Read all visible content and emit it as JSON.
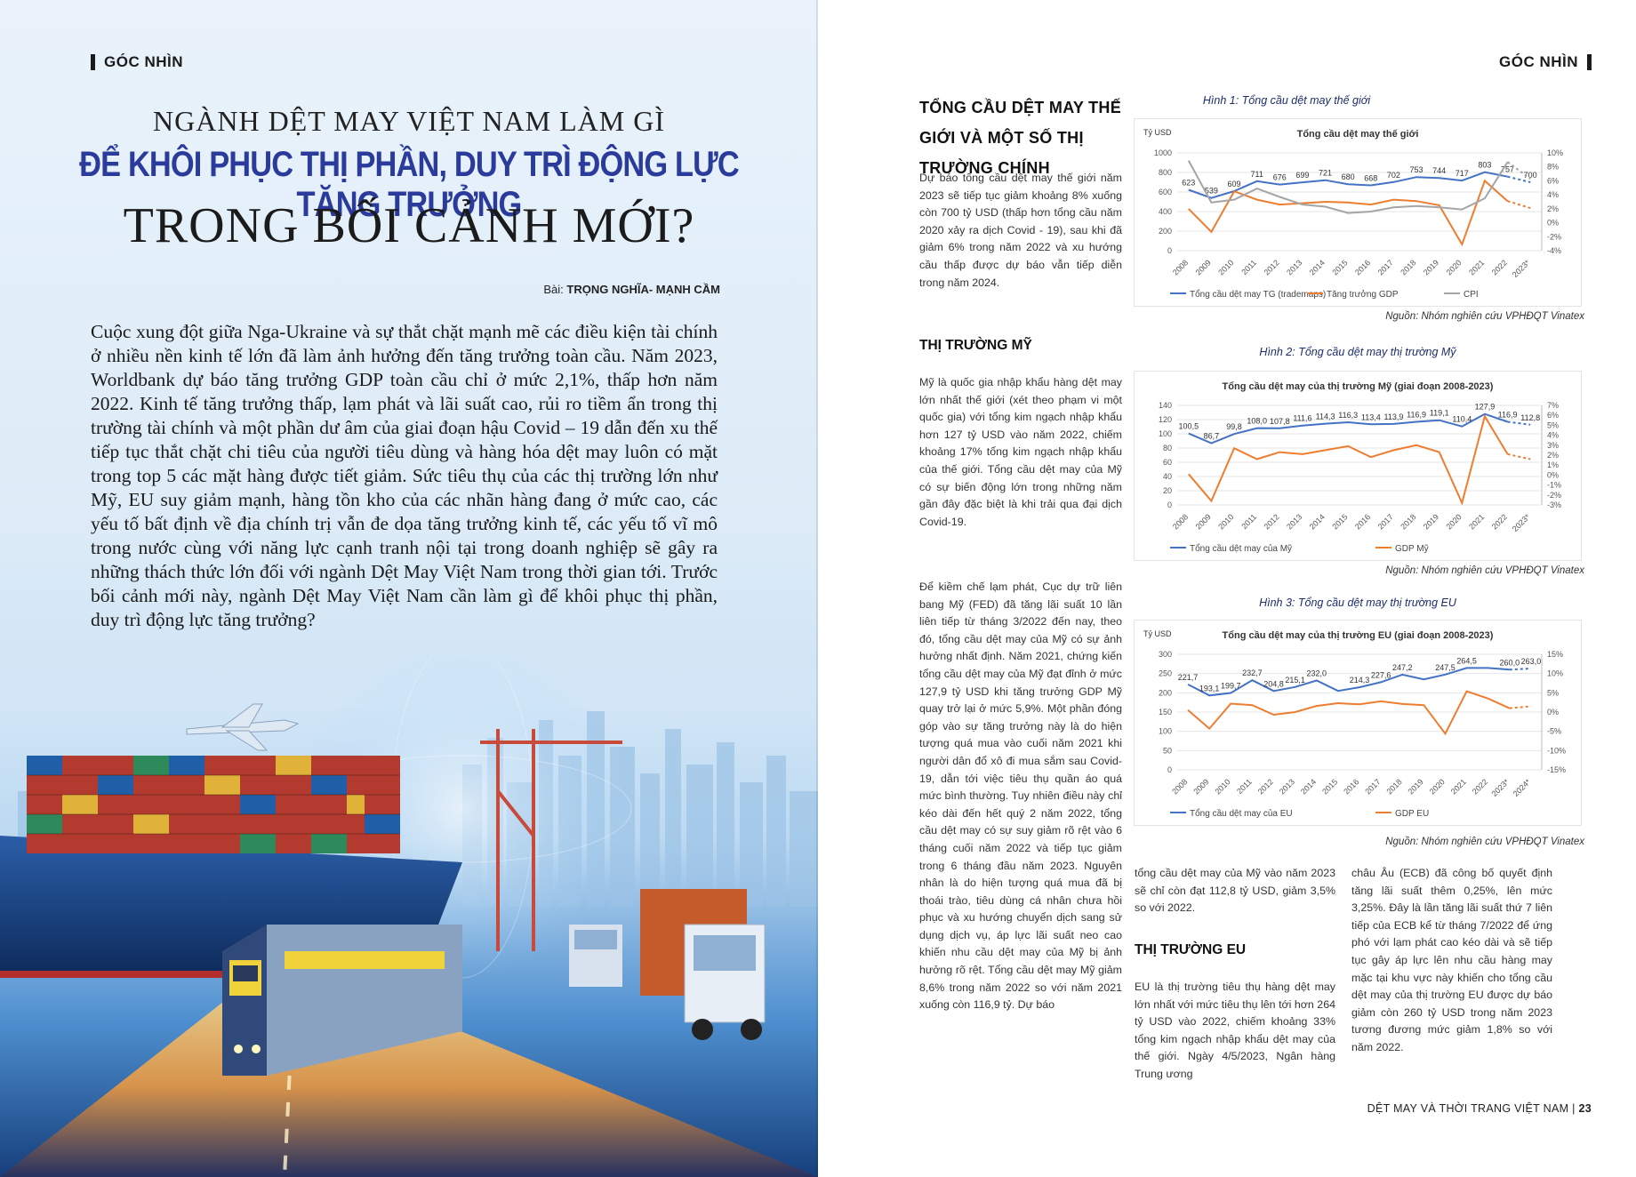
{
  "left_page": {
    "section_tag": "GÓC NHÌN",
    "title_line1": "NGÀNH DỆT MAY VIỆT NAM LÀM GÌ",
    "title_line2": "ĐỂ KHÔI PHỤC THỊ PHẦN, DUY TRÌ ĐỘNG LỰC TĂNG TRƯỞNG",
    "title_line3": "TRONG BỐI CẢNH MỚI?",
    "byline_prefix": "Bài:",
    "byline_authors": "TRỌNG NGHĨA- MẠNH CẦM",
    "lead": "Cuộc xung đột giữa Nga-Ukraine và sự thắt chặt mạnh mẽ các điều kiện tài chính ở nhiều nền kinh tế lớn đã làm ảnh hưởng đến tăng trưởng toàn cầu. Năm 2023, Worldbank dự báo tăng trưởng GDP toàn cầu chỉ ở mức 2,1%, thấp hơn năm 2022. Kinh tế tăng trưởng thấp, lạm phát và lãi suất cao, rủi ro tiềm ẩn trong thị trường tài chính và một phần dư âm của giai đoạn hậu Covid – 19 dẫn đến xu thế tiếp tục thắt chặt chi tiêu của người tiêu dùng và hàng hóa dệt may luôn có mặt trong top 5 các mặt hàng được tiết giảm. Sức tiêu thụ của các thị trường lớn như Mỹ, EU suy giảm mạnh, hàng tồn kho của các nhãn hàng đang ở mức cao, các yếu tố bất định về địa chính trị vẫn đe dọa tăng trưởng kinh tế, các yếu tố vĩ mô trong nước cùng với năng lực cạnh tranh nội tại trong doanh nghiệp sẽ gây ra những thách thức lớn đối với ngành Dệt May Việt Nam trong thời gian tới. Trước bối cảnh mới này, ngành Dệt May Việt Nam cần làm gì để khôi phục thị phần, duy trì động lực tăng trưởng?"
  },
  "right_page": {
    "section_tag": "GÓC NHÌN",
    "heading_world": "TỔNG CẦU DỆT MAY THẾ GIỚI VÀ MỘT SỐ THỊ TRƯỜNG CHÍNH",
    "para_world": "Dự báo tổng cầu dệt may thế giới năm 2023 sẽ tiếp tục giảm khoảng 8% xuống còn 700 tỷ USD (thấp hơn tổng cầu năm 2020 xảy ra dịch Covid - 19), sau khi đã giảm 6% trong năm 2022 và xu hướng cầu thấp được dự báo vẫn tiếp diễn trong năm 2024.",
    "heading_us": "THỊ TRƯỜNG MỸ",
    "para_us1": "Mỹ là quốc gia nhập khẩu hàng dệt may lớn nhất thế giới (xét theo phạm vi một quốc gia) với tổng kim ngạch nhập khẩu hơn 127 tỷ USD vào năm 2022, chiếm khoảng 17% tổng kim ngạch nhập khẩu của thế giới. Tổng cầu dệt may của Mỹ có sự biến động lớn trong những năm gần đây đặc biệt là khi trải qua đại dịch Covid-19.",
    "para_us2": "Để kiềm chế lạm phát, Cục dự trữ liên bang Mỹ (FED) đã tăng lãi suất 10 lần liên tiếp từ tháng 3/2022 đến nay, theo đó, tổng cầu dệt may của Mỹ có sự ảnh hưởng nhất định. Năm 2021, chứng kiến tổng cầu dệt may của Mỹ đạt đỉnh ở mức 127,9 tỷ USD khi tăng trưởng GDP Mỹ quay trở lại ở mức 5,9%. Một phần đóng góp vào sự tăng trưởng này là do hiện tượng quá mua vào cuối năm 2021 khi người dân đổ xô đi mua sắm sau Covid-19, dẫn tới việc tiêu thụ quần áo quá mức bình thường. Tuy nhiên điều này chỉ kéo dài đến hết quý 2 năm 2022, tổng cầu dệt may có sự suy giảm rõ rệt vào 6 tháng cuối năm 2022 và tiếp tục giảm trong 6 tháng đầu năm 2023. Nguyên nhân là do hiện tượng quá mua đã bị thoái trào, tiêu dùng cá nhân chưa hồi phục và xu hướng chuyển dịch sang sử dụng dịch vụ, áp lực lãi suất neo cao khiến nhu cầu dệt may của Mỹ bị ảnh hưởng rõ rệt. Tổng cầu dệt may Mỹ giảm 8,6% trong năm 2022 so với năm 2021 xuống còn 116,9 tỷ. Dự báo",
    "para_us3": "tổng cầu dệt may của Mỹ vào năm 2023 sẽ chỉ còn đạt 112,8 tỷ USD, giảm 3,5% so với 2022.",
    "heading_eu": "THỊ TRƯỜNG EU",
    "para_eu1": "EU là thị trường tiêu thụ hàng dệt may lớn nhất với mức tiêu thụ lên tới hơn 264 tỷ USD vào 2022, chiếm khoảng 33% tổng kim ngạch nhập khẩu dệt may của thế giới. Ngày 4/5/2023, Ngân hàng Trung ương",
    "para_eu2": "châu Âu (ECB) đã công bố quyết định tăng lãi suất thêm 0,25%, lên mức 3,25%. Đây là lần tăng lãi suất thứ 7 liên tiếp của ECB kể từ tháng 7/2022 để ứng phó với lạm phát cao kéo dài và sẽ tiếp tục gây áp lực lên nhu cầu hàng may mặc tại khu vực này khiến cho tổng cầu dệt may của thị trường EU được dự báo giảm còn 260 tỷ USD trong năm 2023 tương đương mức giảm 1,8% so với năm 2022.",
    "footer_title": "DỆT MAY VÀ THỜI TRANG VIỆT NAM",
    "footer_sep": "|",
    "page_number": "23"
  },
  "figures": [
    {
      "caption": "Hình 1: Tổng cầu dệt may thế giới",
      "source": "Nguồn: Nhóm nghiên cứu VPHĐQT Vinatex"
    },
    {
      "caption": "Hình 2: Tổng cầu dệt may thị trường Mỹ",
      "source": "Nguồn: Nhóm nghiên cứu VPHĐQT Vinatex"
    },
    {
      "caption": "Hình 3: Tổng cầu dệt may thị trường EU",
      "source": "Nguồn: Nhóm nghiên cứu VPHĐQT Vinatex"
    }
  ],
  "colors": {
    "blue_series": "#4472c4",
    "orange_series": "#ed7d31",
    "gray_series": "#a5a5a5",
    "title_blue": "#2b3b9c"
  },
  "chart_data": [
    {
      "type": "line",
      "title": "Tổng cầu dệt may thế giới",
      "ylabel": "Tỷ USD",
      "x": [
        "2008",
        "2009",
        "2010",
        "2011",
        "2012",
        "2013",
        "2014",
        "2015",
        "2016",
        "2017",
        "2018",
        "2019",
        "2020",
        "2021",
        "2022",
        "2023*"
      ],
      "ylim": [
        0,
        1000
      ],
      "y2lim": [
        -4,
        10
      ],
      "yticks": [
        "1000",
        "800",
        "600",
        "400",
        "200",
        "0"
      ],
      "y2ticks": [
        "10%",
        "8%",
        "6%",
        "4%",
        "2%",
        "0%",
        "-2%",
        "-4%"
      ],
      "series": [
        {
          "name": "Tổng cầu dệt may TG (trademaps)",
          "axis": "left",
          "color": "#4472c4",
          "values": [
            623,
            539,
            609,
            711,
            676,
            699,
            721,
            680,
            668,
            702,
            753,
            744,
            717,
            803,
            757,
            700
          ],
          "labels": [
            "623",
            "539",
            "609",
            "711",
            "676",
            "699",
            "721",
            "680",
            "668",
            "702",
            "753",
            "744",
            "717",
            "803",
            "757",
            "700"
          ]
        },
        {
          "name": "Tăng trưởng GDP",
          "axis": "right",
          "color": "#ed7d31",
          "values": [
            2.0,
            -1.3,
            4.5,
            3.3,
            2.6,
            2.8,
            3.0,
            2.9,
            2.6,
            3.3,
            3.1,
            2.5,
            -3.1,
            6.0,
            3.1,
            2.1
          ]
        },
        {
          "name": "CPI",
          "axis": "right",
          "color": "#a5a5a5",
          "values": [
            8.9,
            2.9,
            3.3,
            4.9,
            3.7,
            2.6,
            2.3,
            1.4,
            1.6,
            2.2,
            2.4,
            2.2,
            1.9,
            3.5,
            8.7,
            6.3
          ]
        }
      ]
    },
    {
      "type": "line",
      "title": "Tổng cầu dệt may của thị trường Mỹ (giai đoạn 2008-2023)",
      "x": [
        "2008",
        "2009",
        "2010",
        "2011",
        "2012",
        "2013",
        "2014",
        "2015",
        "2016",
        "2017",
        "2018",
        "2019",
        "2020",
        "2021",
        "2022",
        "2023*"
      ],
      "ylim": [
        0,
        140
      ],
      "y2lim": [
        -3,
        7
      ],
      "yticks": [
        "140",
        "120",
        "100",
        "80",
        "60",
        "40",
        "20",
        "0"
      ],
      "y2ticks": [
        "7%",
        "6%",
        "5%",
        "4%",
        "3%",
        "2%",
        "1%",
        "0%",
        "-1%",
        "-2%",
        "-3%"
      ],
      "series": [
        {
          "name": "Tổng cầu dệt may của Mỹ",
          "axis": "left",
          "color": "#4472c4",
          "values": [
            100.5,
            86.7,
            99.8,
            108.0,
            107.8,
            111.6,
            114.3,
            116.3,
            113.4,
            113.9,
            116.9,
            119.1,
            110.4,
            127.9,
            116.9,
            112.8
          ],
          "labels": [
            "100,5",
            "86,7",
            "99,8",
            "108,0",
            "107,8",
            "111,6",
            "114,3",
            "116,3",
            "113,4",
            "113,9",
            "116,9",
            "119,1",
            "110,4",
            "127,9",
            "116,9",
            "112,8"
          ]
        },
        {
          "name": "GDP Mỹ",
          "axis": "right",
          "color": "#ed7d31",
          "values": [
            0.1,
            -2.6,
            2.7,
            1.6,
            2.3,
            2.1,
            2.5,
            2.9,
            1.8,
            2.5,
            3.0,
            2.3,
            -2.8,
            5.9,
            2.1,
            1.6
          ]
        }
      ]
    },
    {
      "type": "line",
      "title": "Tổng cầu dệt may của thị trường EU (giai đoạn 2008-2023)",
      "ylabel": "Tỷ USD",
      "x": [
        "2008",
        "2009",
        "2010",
        "2011",
        "2012",
        "2013",
        "2014",
        "2015",
        "2016",
        "2017",
        "2018",
        "2019",
        "2020",
        "2021",
        "2022",
        "2023*",
        "2024*"
      ],
      "ylim": [
        0,
        300
      ],
      "y2lim": [
        -15,
        15
      ],
      "yticks": [
        "300",
        "250",
        "200",
        "150",
        "100",
        "50",
        "0"
      ],
      "y2ticks": [
        "15%",
        "10%",
        "5%",
        "0%",
        "-5%",
        "-10%",
        "-15%"
      ],
      "series": [
        {
          "name": "Tổng cầu dệt may của EU",
          "axis": "left",
          "color": "#4472c4",
          "values": [
            221.7,
            193.1,
            199.7,
            232.7,
            204.8,
            215.1,
            232.0,
            205.0,
            214.3,
            227.6,
            247.2,
            235.0,
            247.5,
            264.5,
            264.5,
            260.0,
            263.0
          ],
          "labels": [
            "221,7",
            "193,1",
            "199,7",
            "232,7",
            "204,8",
            "215,1",
            "232,0",
            "",
            "214,3",
            "227,6",
            "247,2",
            "",
            "247,5",
            "264,5",
            "",
            "260,0",
            "263,0"
          ]
        },
        {
          "name": "GDP EU",
          "axis": "right",
          "color": "#ed7d31",
          "values": [
            0.5,
            -4.3,
            2.2,
            1.8,
            -0.7,
            0.0,
            1.6,
            2.3,
            2.0,
            2.8,
            2.1,
            1.8,
            -5.6,
            5.4,
            3.5,
            1.0,
            1.5
          ]
        }
      ]
    }
  ]
}
